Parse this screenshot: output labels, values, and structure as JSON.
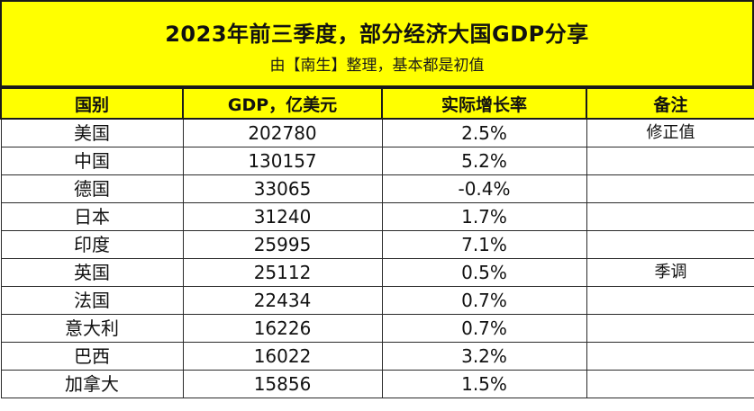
{
  "header": {
    "title": "2023年前三季度，部分经济大国GDP分享",
    "subtitle": "由【南生】整理，基本都是初值"
  },
  "table": {
    "columns": [
      "国别",
      "GDP，亿美元",
      "实际增长率",
      "备注"
    ],
    "rows": [
      {
        "country": "美国",
        "gdp": "202780",
        "growth": "2.5%",
        "note": "修正值"
      },
      {
        "country": "中国",
        "gdp": "130157",
        "growth": "5.2%",
        "note": ""
      },
      {
        "country": "德国",
        "gdp": "33065",
        "growth": "-0.4%",
        "note": ""
      },
      {
        "country": "日本",
        "gdp": "31240",
        "growth": "1.7%",
        "note": ""
      },
      {
        "country": "印度",
        "gdp": "25995",
        "growth": "7.1%",
        "note": ""
      },
      {
        "country": "英国",
        "gdp": "25112",
        "growth": "0.5%",
        "note": "季调"
      },
      {
        "country": "法国",
        "gdp": "22434",
        "growth": "0.7%",
        "note": ""
      },
      {
        "country": "意大利",
        "gdp": "16226",
        "growth": "0.7%",
        "note": ""
      },
      {
        "country": "巴西",
        "gdp": "16022",
        "growth": "3.2%",
        "note": ""
      },
      {
        "country": "加拿大",
        "gdp": "15856",
        "growth": "1.5%",
        "note": ""
      }
    ]
  },
  "colors": {
    "header_background": "#ffff00",
    "border": "#1a1a1a",
    "text": "#111111"
  }
}
